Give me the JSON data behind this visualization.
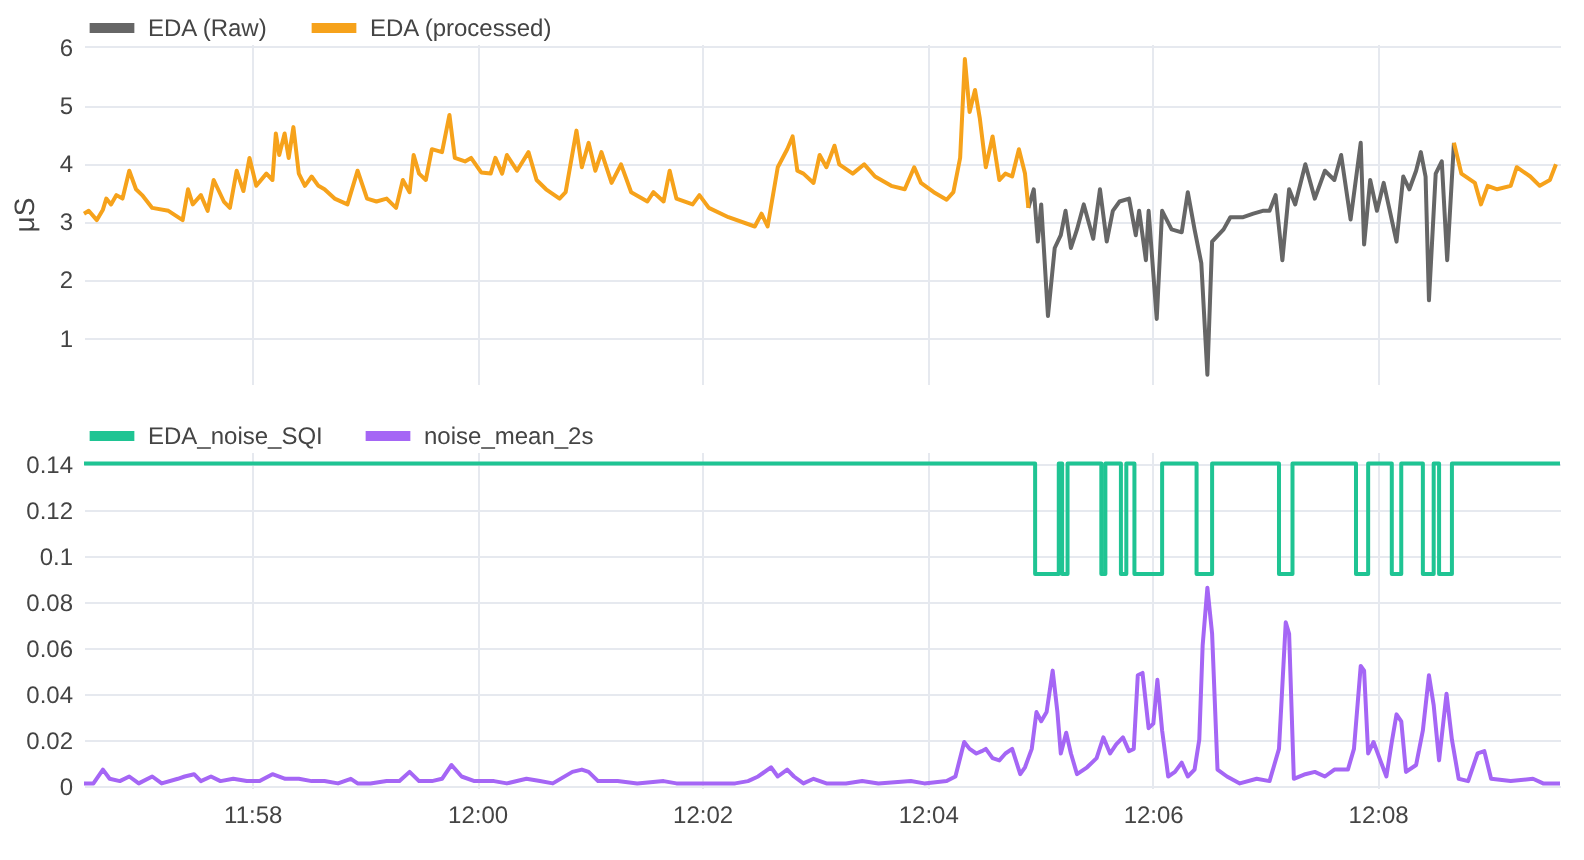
{
  "chart_data": [
    {
      "type": "line",
      "ylabel": "μS",
      "xlim": [
        11.9418,
        12.1603
      ],
      "ylim": [
        0.2,
        6.05
      ],
      "yticks": [
        1,
        2,
        3,
        4,
        5,
        6
      ],
      "xticks": [
        {
          "value": 11.9667,
          "label": null
        },
        {
          "value": 12.0,
          "label": null
        },
        {
          "value": 12.0333,
          "label": null
        },
        {
          "value": 12.0667,
          "label": null
        },
        {
          "value": 12.1,
          "label": null
        },
        {
          "value": 12.1333,
          "label": null
        }
      ],
      "tick_labels": "y",
      "grid": true,
      "legend": "top left",
      "x": [
        11.9418,
        11.9425,
        11.9437,
        11.9446,
        11.9451,
        11.9458,
        11.9466,
        11.9475,
        11.9485,
        11.9495,
        11.9504,
        11.9519,
        11.9543,
        11.9564,
        11.9572,
        11.9579,
        11.9591,
        11.9601,
        11.961,
        11.9625,
        11.9634,
        11.9644,
        11.9654,
        11.9663,
        11.9673,
        11.9688,
        11.9697,
        11.9702,
        11.9707,
        11.9715,
        11.9721,
        11.9728,
        11.9736,
        11.9745,
        11.9755,
        11.9765,
        11.9774,
        11.9789,
        11.9808,
        11.9823,
        11.9837,
        11.9851,
        11.9866,
        11.988,
        11.989,
        11.99,
        11.9906,
        11.9914,
        11.9924,
        11.9933,
        11.9948,
        11.9959,
        11.9967,
        11.9982,
        11.9991,
        12.0006,
        12.002,
        12.0027,
        12.0037,
        12.0044,
        12.0059,
        12.0076,
        12.0088,
        12.0102,
        12.0122,
        12.0131,
        12.0147,
        12.0155,
        12.0165,
        12.0175,
        12.0184,
        12.0199,
        12.0213,
        12.0228,
        12.0252,
        12.0261,
        12.0276,
        12.0285,
        12.0295,
        12.0319,
        12.0329,
        12.0343,
        12.0372,
        12.0411,
        12.0421,
        12.043,
        12.0445,
        12.0459,
        12.0467,
        12.0474,
        12.0483,
        12.0498,
        12.0507,
        12.0517,
        12.0529,
        12.0536,
        12.0556,
        12.0573,
        12.0589,
        12.0613,
        12.0633,
        12.0647,
        12.0657,
        12.0676,
        12.0695,
        12.0705,
        12.0715,
        12.0722,
        12.0729,
        12.0737,
        12.0744,
        12.0753,
        12.0763,
        12.0773,
        12.0782,
        12.0792,
        12.0802,
        12.0811,
        12.0816,
        12.0824,
        12.083,
        12.0835,
        12.0845,
        12.0855,
        12.0864,
        12.0871,
        12.0879,
        12.0888,
        12.0898,
        12.0912,
        12.0922,
        12.0932,
        12.0941,
        12.0951,
        12.0965,
        12.0975,
        12.098,
        12.099,
        12.0994,
        12.1006,
        12.1014,
        12.1028,
        12.1043,
        12.1052,
        12.1062,
        12.1072,
        12.1081,
        12.1088,
        12.1105,
        12.1115,
        12.1134,
        12.1149,
        12.1163,
        12.1173,
        12.1182,
        12.1192,
        12.1202,
        12.1211,
        12.1226,
        12.124,
        12.1255,
        12.1269,
        12.1279,
        12.1293,
        12.1308,
        12.1313,
        12.1322,
        12.1332,
        12.1342,
        12.1361,
        12.1371,
        12.138,
        12.139,
        12.1397,
        12.1404,
        12.1409,
        12.1419,
        12.1428,
        12.1436,
        12.1446,
        12.1457,
        12.1477,
        12.1486,
        12.1496,
        12.151,
        12.153,
        12.1539,
        12.1559,
        12.1573,
        12.1588,
        12.1597
      ],
      "series": [
        {
          "name": "EDA (Raw)",
          "color": "#666666",
          "values": [
            null,
            null,
            null,
            null,
            null,
            null,
            null,
            null,
            null,
            null,
            null,
            null,
            null,
            null,
            null,
            null,
            null,
            null,
            null,
            null,
            null,
            null,
            null,
            null,
            null,
            null,
            null,
            null,
            null,
            null,
            null,
            null,
            null,
            null,
            null,
            null,
            null,
            null,
            null,
            null,
            null,
            null,
            null,
            null,
            null,
            null,
            null,
            null,
            null,
            null,
            null,
            null,
            null,
            null,
            null,
            null,
            null,
            null,
            null,
            null,
            null,
            null,
            null,
            null,
            null,
            null,
            null,
            null,
            null,
            null,
            null,
            null,
            null,
            null,
            null,
            null,
            null,
            null,
            null,
            null,
            null,
            null,
            null,
            null,
            null,
            null,
            null,
            null,
            null,
            null,
            null,
            null,
            null,
            null,
            null,
            null,
            null,
            null,
            null,
            null,
            null,
            null,
            null,
            null,
            null,
            null,
            null,
            null,
            null,
            null,
            null,
            null,
            null,
            null,
            null,
            null,
            null,
            null,
            3.23,
            3.55,
            2.65,
            3.29,
            1.37,
            2.54,
            2.76,
            3.18,
            2.54,
            2.86,
            3.29,
            2.7,
            3.55,
            2.65,
            3.18,
            3.34,
            3.39,
            2.76,
            3.18,
            2.33,
            3.18,
            1.32,
            3.18,
            2.86,
            2.81,
            3.5,
            2.86,
            2.28,
            0.36,
            2.65,
            2.86,
            3.07,
            3.07,
            3.13,
            3.18,
            3.18,
            3.45,
            2.33,
            3.55,
            3.29,
            3.98,
            3.39,
            3.87,
            3.71,
            4.14,
            3.03,
            4.35,
            2.6,
            3.71,
            3.18,
            3.66,
            2.65,
            3.77,
            3.55,
            3.87,
            4.19,
            3.77,
            1.64,
            3.82,
            4.03,
            2.33,
            4.35,
            null,
            null,
            null,
            null,
            null,
            null,
            null,
            null,
            null,
            null,
            null
          ]
        },
        {
          "name": "EDA (processed)",
          "color": "#f6a21b",
          "values": [
            3.13,
            3.18,
            3.02,
            3.2,
            3.39,
            3.29,
            3.45,
            3.39,
            3.87,
            3.55,
            3.45,
            3.23,
            3.18,
            3.02,
            3.55,
            3.29,
            3.45,
            3.18,
            3.71,
            3.34,
            3.23,
            3.87,
            3.52,
            4.09,
            3.61,
            3.82,
            3.71,
            4.51,
            4.14,
            4.51,
            4.09,
            4.62,
            3.82,
            3.61,
            3.77,
            3.61,
            3.55,
            3.39,
            3.29,
            3.87,
            3.39,
            3.34,
            3.39,
            3.23,
            3.71,
            3.5,
            4.14,
            3.82,
            3.71,
            4.24,
            4.19,
            4.83,
            4.09,
            4.03,
            4.09,
            3.84,
            3.82,
            4.09,
            3.82,
            4.14,
            3.87,
            4.19,
            3.71,
            3.55,
            3.39,
            3.5,
            4.56,
            3.93,
            4.35,
            3.87,
            4.19,
            3.66,
            3.98,
            3.5,
            3.34,
            3.5,
            3.34,
            3.87,
            3.39,
            3.29,
            3.45,
            3.23,
            3.07,
            2.91,
            3.13,
            2.91,
            3.93,
            4.24,
            4.46,
            3.87,
            3.82,
            3.66,
            4.14,
            3.93,
            4.3,
            3.98,
            3.82,
            3.98,
            3.77,
            3.61,
            3.55,
            3.93,
            3.66,
            3.5,
            3.37,
            3.5,
            4.09,
            5.79,
            4.88,
            5.26,
            4.78,
            3.93,
            4.46,
            3.71,
            3.82,
            3.77,
            4.24,
            3.82,
            3.23,
            null,
            null,
            null,
            null,
            null,
            null,
            null,
            null,
            null,
            null,
            null,
            null,
            null,
            null,
            null,
            null,
            null,
            null,
            null,
            null,
            null,
            null,
            null,
            null,
            null,
            null,
            null,
            null,
            null,
            null,
            null,
            null,
            null,
            null,
            null,
            null,
            null,
            null,
            null,
            null,
            null,
            null,
            null,
            null,
            null,
            null,
            null,
            null,
            null,
            null,
            null,
            null,
            null,
            null,
            null,
            null,
            null,
            null,
            null,
            null,
            4.35,
            3.82,
            3.66,
            3.29,
            3.61,
            3.55,
            3.61,
            3.93,
            3.77,
            3.61,
            3.71,
            3.98
          ]
        }
      ]
    },
    {
      "type": "line",
      "xlim": [
        11.9418,
        12.1603
      ],
      "ylim": [
        -0.001,
        0.145
      ],
      "yticks": [
        0,
        0.02,
        0.04,
        0.06,
        0.08,
        0.1,
        0.12,
        0.14
      ],
      "xticks": [
        {
          "value": 11.9667,
          "label": "11:58"
        },
        {
          "value": 12.0,
          "label": "12:00"
        },
        {
          "value": 12.0333,
          "label": "12:02"
        },
        {
          "value": 12.0667,
          "label": "12:04"
        },
        {
          "value": 12.1,
          "label": "12:06"
        },
        {
          "value": 12.1333,
          "label": "12:08"
        }
      ],
      "grid": true,
      "legend": "top left",
      "series": [
        {
          "name": "EDA_noise_SQI",
          "type": "step",
          "color": "#1fc493",
          "x": [
            11.9418,
            12.0826,
            12.0861,
            12.0866,
            12.0874,
            12.0924,
            12.093,
            12.0953,
            12.0961,
            12.0973,
            12.1014,
            12.1065,
            12.1088,
            12.1187,
            12.1207,
            12.1301,
            12.1319,
            12.1354,
            12.1368,
            12.14,
            12.1416,
            12.1424,
            12.1443,
            12.1603
          ],
          "values": [
            0.14,
            0.092,
            0.14,
            0.092,
            0.14,
            0.092,
            0.14,
            0.092,
            0.14,
            0.092,
            0.14,
            0.092,
            0.14,
            0.092,
            0.14,
            0.092,
            0.14,
            0.092,
            0.14,
            0.092,
            0.14,
            0.092,
            0.14,
            0.14
          ]
        },
        {
          "name": "noise_mean_2s",
          "type": "line",
          "color": "#a566f5",
          "x": [
            11.9418,
            11.9432,
            11.9446,
            11.9456,
            11.9471,
            11.9485,
            11.9499,
            11.9519,
            11.9533,
            11.9557,
            11.9567,
            11.9581,
            11.9591,
            11.9606,
            11.962,
            11.9639,
            11.9659,
            11.9678,
            11.9697,
            11.9716,
            11.9736,
            11.9755,
            11.9774,
            11.9794,
            11.9813,
            11.9823,
            11.9842,
            11.9866,
            11.9885,
            11.99,
            11.9914,
            11.9933,
            11.9948,
            11.9962,
            11.9977,
            11.9996,
            12.0025,
            12.0044,
            12.0073,
            12.0093,
            12.0112,
            12.0141,
            12.0155,
            12.0165,
            12.0179,
            12.0208,
            12.0237,
            12.0276,
            12.0295,
            12.0324,
            12.0353,
            12.0382,
            12.0401,
            12.0416,
            12.0435,
            12.0445,
            12.0459,
            12.0469,
            12.0483,
            12.0498,
            12.0517,
            12.0546,
            12.057,
            12.0594,
            12.0642,
            12.0662,
            12.0695,
            12.0708,
            12.0721,
            12.0729,
            12.0739,
            12.0747,
            12.0753,
            12.0763,
            12.0773,
            12.0782,
            12.0792,
            12.0804,
            12.0811,
            12.0821,
            12.0828,
            12.0835,
            12.0843,
            12.0852,
            12.0859,
            12.0864,
            12.0872,
            12.0879,
            12.0888,
            12.0903,
            12.0917,
            12.0927,
            12.0937,
            12.0946,
            12.0956,
            12.0965,
            12.0972,
            12.0978,
            12.0985,
            12.0994,
            12.1001,
            12.1007,
            12.1014,
            12.1023,
            12.1033,
            12.1043,
            12.1052,
            12.1062,
            12.1069,
            12.1074,
            12.1081,
            12.1088,
            12.1096,
            12.111,
            12.1129,
            12.1154,
            12.1173,
            12.1187,
            12.1197,
            12.1202,
            12.1209,
            12.1226,
            12.124,
            12.1255,
            12.1269,
            12.1289,
            12.1298,
            12.1308,
            12.1313,
            12.1319,
            12.1327,
            12.1337,
            12.1346,
            12.1354,
            12.1361,
            12.1368,
            12.1375,
            12.139,
            12.14,
            12.1409,
            12.1416,
            12.1424,
            12.1435,
            12.1443,
            12.1453,
            12.1467,
            12.1481,
            12.1491,
            12.1501,
            12.153,
            12.1563,
            12.1578,
            12.1603
          ],
          "values": [
            0.001,
            0.001,
            0.007,
            0.003,
            0.002,
            0.004,
            0.001,
            0.004,
            0.001,
            0.003,
            0.004,
            0.005,
            0.002,
            0.004,
            0.002,
            0.003,
            0.002,
            0.002,
            0.005,
            0.003,
            0.003,
            0.002,
            0.002,
            0.001,
            0.003,
            0.001,
            0.001,
            0.002,
            0.002,
            0.006,
            0.002,
            0.002,
            0.003,
            0.009,
            0.004,
            0.002,
            0.002,
            0.001,
            0.003,
            0.002,
            0.001,
            0.006,
            0.007,
            0.006,
            0.002,
            0.002,
            0.001,
            0.002,
            0.001,
            0.001,
            0.001,
            0.001,
            0.002,
            0.004,
            0.008,
            0.004,
            0.007,
            0.004,
            0.001,
            0.003,
            0.001,
            0.001,
            0.002,
            0.001,
            0.002,
            0.001,
            0.002,
            0.004,
            0.019,
            0.016,
            0.014,
            0.015,
            0.016,
            0.012,
            0.011,
            0.014,
            0.016,
            0.005,
            0.008,
            0.016,
            0.032,
            0.028,
            0.032,
            0.05,
            0.032,
            0.014,
            0.023,
            0.014,
            0.005,
            0.008,
            0.012,
            0.021,
            0.014,
            0.018,
            0.021,
            0.015,
            0.016,
            0.048,
            0.049,
            0.025,
            0.027,
            0.046,
            0.024,
            0.004,
            0.006,
            0.01,
            0.004,
            0.007,
            0.02,
            0.061,
            0.086,
            0.066,
            0.007,
            0.004,
            0.001,
            0.003,
            0.002,
            0.016,
            0.071,
            0.066,
            0.003,
            0.005,
            0.006,
            0.004,
            0.007,
            0.007,
            0.016,
            0.052,
            0.05,
            0.014,
            0.019,
            0.011,
            0.004,
            0.019,
            0.031,
            0.028,
            0.006,
            0.009,
            0.024,
            0.048,
            0.035,
            0.011,
            0.04,
            0.02,
            0.003,
            0.002,
            0.014,
            0.015,
            0.003,
            0.002,
            0.003,
            0.001,
            0.001
          ]
        }
      ]
    }
  ]
}
